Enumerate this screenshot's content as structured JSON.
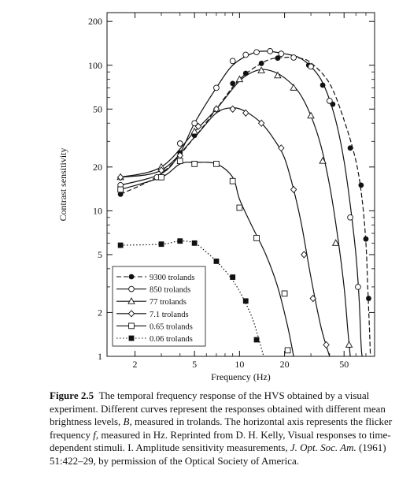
{
  "chart_data": {
    "type": "line",
    "xlabel": "Frequency (Hz)",
    "ylabel": "Contrast sensitivity",
    "x_scale": "log",
    "y_scale": "log",
    "xlim": [
      1.3,
      80
    ],
    "ylim": [
      1,
      230
    ],
    "x_ticks": [
      2,
      5,
      10,
      20,
      50
    ],
    "y_ticks": [
      1,
      2,
      5,
      10,
      20,
      50,
      100,
      200
    ],
    "grid": false,
    "legend_position": "lower-left",
    "series": [
      {
        "name": "9300 trolands",
        "marker": "filled-circle",
        "line": "dashed",
        "points": [
          [
            1.6,
            13
          ],
          [
            3,
            19
          ],
          [
            4,
            25
          ],
          [
            5,
            33
          ],
          [
            7,
            50
          ],
          [
            9,
            75
          ],
          [
            11,
            88
          ],
          [
            14,
            103
          ],
          [
            18,
            112
          ],
          [
            23,
            113
          ],
          [
            29,
            100
          ],
          [
            36,
            73
          ],
          [
            42,
            54
          ],
          [
            55,
            27
          ],
          [
            65,
            15
          ],
          [
            70,
            6.4
          ],
          [
            73,
            2.5
          ]
        ],
        "curve": [
          [
            1.6,
            13
          ],
          [
            3,
            18
          ],
          [
            5,
            32
          ],
          [
            7,
            50
          ],
          [
            10,
            80
          ],
          [
            15,
            107
          ],
          [
            20,
            113
          ],
          [
            25,
            112
          ],
          [
            30,
            104
          ],
          [
            40,
            75
          ],
          [
            50,
            42
          ],
          [
            60,
            22
          ],
          [
            66,
            12
          ],
          [
            70,
            6
          ],
          [
            72,
            3
          ],
          [
            74,
            1.5
          ],
          [
            75,
            1
          ]
        ]
      },
      {
        "name": "850 trolands",
        "marker": "open-circle",
        "line": "solid",
        "points": [
          [
            1.6,
            15
          ],
          [
            2.8,
            17
          ],
          [
            4,
            29
          ],
          [
            5,
            40
          ],
          [
            7,
            70
          ],
          [
            9,
            107
          ],
          [
            11,
            118
          ],
          [
            13,
            123
          ],
          [
            16,
            125
          ],
          [
            19,
            120
          ],
          [
            23,
            113
          ],
          [
            30,
            98
          ],
          [
            40,
            57
          ],
          [
            55,
            9
          ],
          [
            62,
            3
          ]
        ],
        "curve": [
          [
            1.6,
            15
          ],
          [
            3,
            18
          ],
          [
            4,
            25
          ],
          [
            5,
            40
          ],
          [
            7,
            70
          ],
          [
            9,
            100
          ],
          [
            12,
            120
          ],
          [
            15,
            125
          ],
          [
            20,
            120
          ],
          [
            25,
            113
          ],
          [
            30,
            98
          ],
          [
            35,
            80
          ],
          [
            40,
            58
          ],
          [
            45,
            38
          ],
          [
            50,
            22
          ],
          [
            55,
            11
          ],
          [
            60,
            5
          ],
          [
            63,
            2.5
          ],
          [
            65,
            1.2
          ],
          [
            66,
            1
          ]
        ]
      },
      {
        "name": "77 trolands",
        "marker": "open-triangle",
        "line": "solid",
        "points": [
          [
            1.6,
            17
          ],
          [
            3,
            20
          ],
          [
            5,
            35
          ],
          [
            7,
            50
          ],
          [
            10,
            80
          ],
          [
            14,
            92
          ],
          [
            18,
            85
          ],
          [
            23,
            70
          ],
          [
            30,
            45
          ],
          [
            36,
            22
          ],
          [
            44,
            6
          ],
          [
            54,
            1.2
          ]
        ],
        "curve": [
          [
            1.6,
            17
          ],
          [
            3,
            20
          ],
          [
            5,
            35
          ],
          [
            7,
            50
          ],
          [
            10,
            78
          ],
          [
            13,
            92
          ],
          [
            16,
            92
          ],
          [
            20,
            82
          ],
          [
            25,
            65
          ],
          [
            30,
            45
          ],
          [
            35,
            28
          ],
          [
            40,
            15
          ],
          [
            45,
            7
          ],
          [
            50,
            3
          ],
          [
            53,
            1.5
          ],
          [
            55,
            1
          ]
        ]
      },
      {
        "name": "7.1 trolands",
        "marker": "open-diamond",
        "line": "solid",
        "points": [
          [
            1.6,
            17
          ],
          [
            3,
            19
          ],
          [
            4,
            24
          ],
          [
            5.3,
            38
          ],
          [
            7,
            50
          ],
          [
            9,
            50
          ],
          [
            11,
            47
          ],
          [
            14,
            40
          ],
          [
            19,
            27
          ],
          [
            23,
            14
          ],
          [
            27,
            5
          ],
          [
            31,
            2.5
          ],
          [
            38,
            1.2
          ]
        ],
        "curve": [
          [
            1.6,
            17
          ],
          [
            3,
            19
          ],
          [
            5,
            32
          ],
          [
            7,
            47
          ],
          [
            9,
            51
          ],
          [
            11,
            48
          ],
          [
            14,
            40
          ],
          [
            17,
            31
          ],
          [
            20,
            23
          ],
          [
            23,
            14
          ],
          [
            26,
            8
          ],
          [
            30,
            3.5
          ],
          [
            35,
            1.6
          ],
          [
            40,
            1
          ]
        ]
      },
      {
        "name": "0.65 trolands",
        "marker": "open-square",
        "line": "solid",
        "points": [
          [
            1.6,
            14
          ],
          [
            3,
            17
          ],
          [
            4,
            22
          ],
          [
            5,
            21
          ],
          [
            7,
            21
          ],
          [
            9,
            16
          ],
          [
            10,
            10.5
          ],
          [
            13,
            6.5
          ],
          [
            20,
            2.7
          ],
          [
            21,
            1.1
          ]
        ],
        "curve": [
          [
            1.6,
            14
          ],
          [
            3,
            17
          ],
          [
            4,
            21
          ],
          [
            5,
            21.5
          ],
          [
            7,
            21
          ],
          [
            9,
            17
          ],
          [
            10,
            12
          ],
          [
            12,
            8
          ],
          [
            15,
            5
          ],
          [
            18,
            3
          ],
          [
            21,
            1.6
          ],
          [
            23,
            1
          ]
        ]
      },
      {
        "name": "0.06 trolands",
        "marker": "filled-square",
        "line": "dotted",
        "points": [
          [
            1.6,
            5.8
          ],
          [
            3,
            5.9
          ],
          [
            4,
            6.2
          ],
          [
            5,
            6.0
          ],
          [
            7,
            4.5
          ],
          [
            9,
            3.5
          ],
          [
            11,
            2.4
          ],
          [
            13,
            1.3
          ]
        ],
        "curve": [
          [
            1.6,
            5.8
          ],
          [
            3,
            5.9
          ],
          [
            4,
            6.2
          ],
          [
            5,
            6.0
          ],
          [
            6,
            5.2
          ],
          [
            7,
            4.5
          ],
          [
            8.5,
            3.6
          ],
          [
            10,
            2.8
          ],
          [
            12,
            1.9
          ],
          [
            13.5,
            1.3
          ],
          [
            14.5,
            1
          ]
        ]
      }
    ]
  },
  "caption": {
    "label": "Figure 2.5",
    "t1": "The temporal frequency response of the HVS obtained by a visual experiment. Different curves represent the responses obtained with different mean brightness levels, ",
    "b": "B",
    "t2": ", measured in trolands. The horizontal axis represents the flicker frequency ",
    "f": "f",
    "t3": ", measured in Hz. Reprinted from D. H. Kelly, Visual responses to time-dependent stimuli. I. Amplitude sensitivity measurements, ",
    "journal": "J. Opt. Soc. Am.",
    "t4": " (1961) 51:422–29, by permission of the Optical Society of America."
  }
}
